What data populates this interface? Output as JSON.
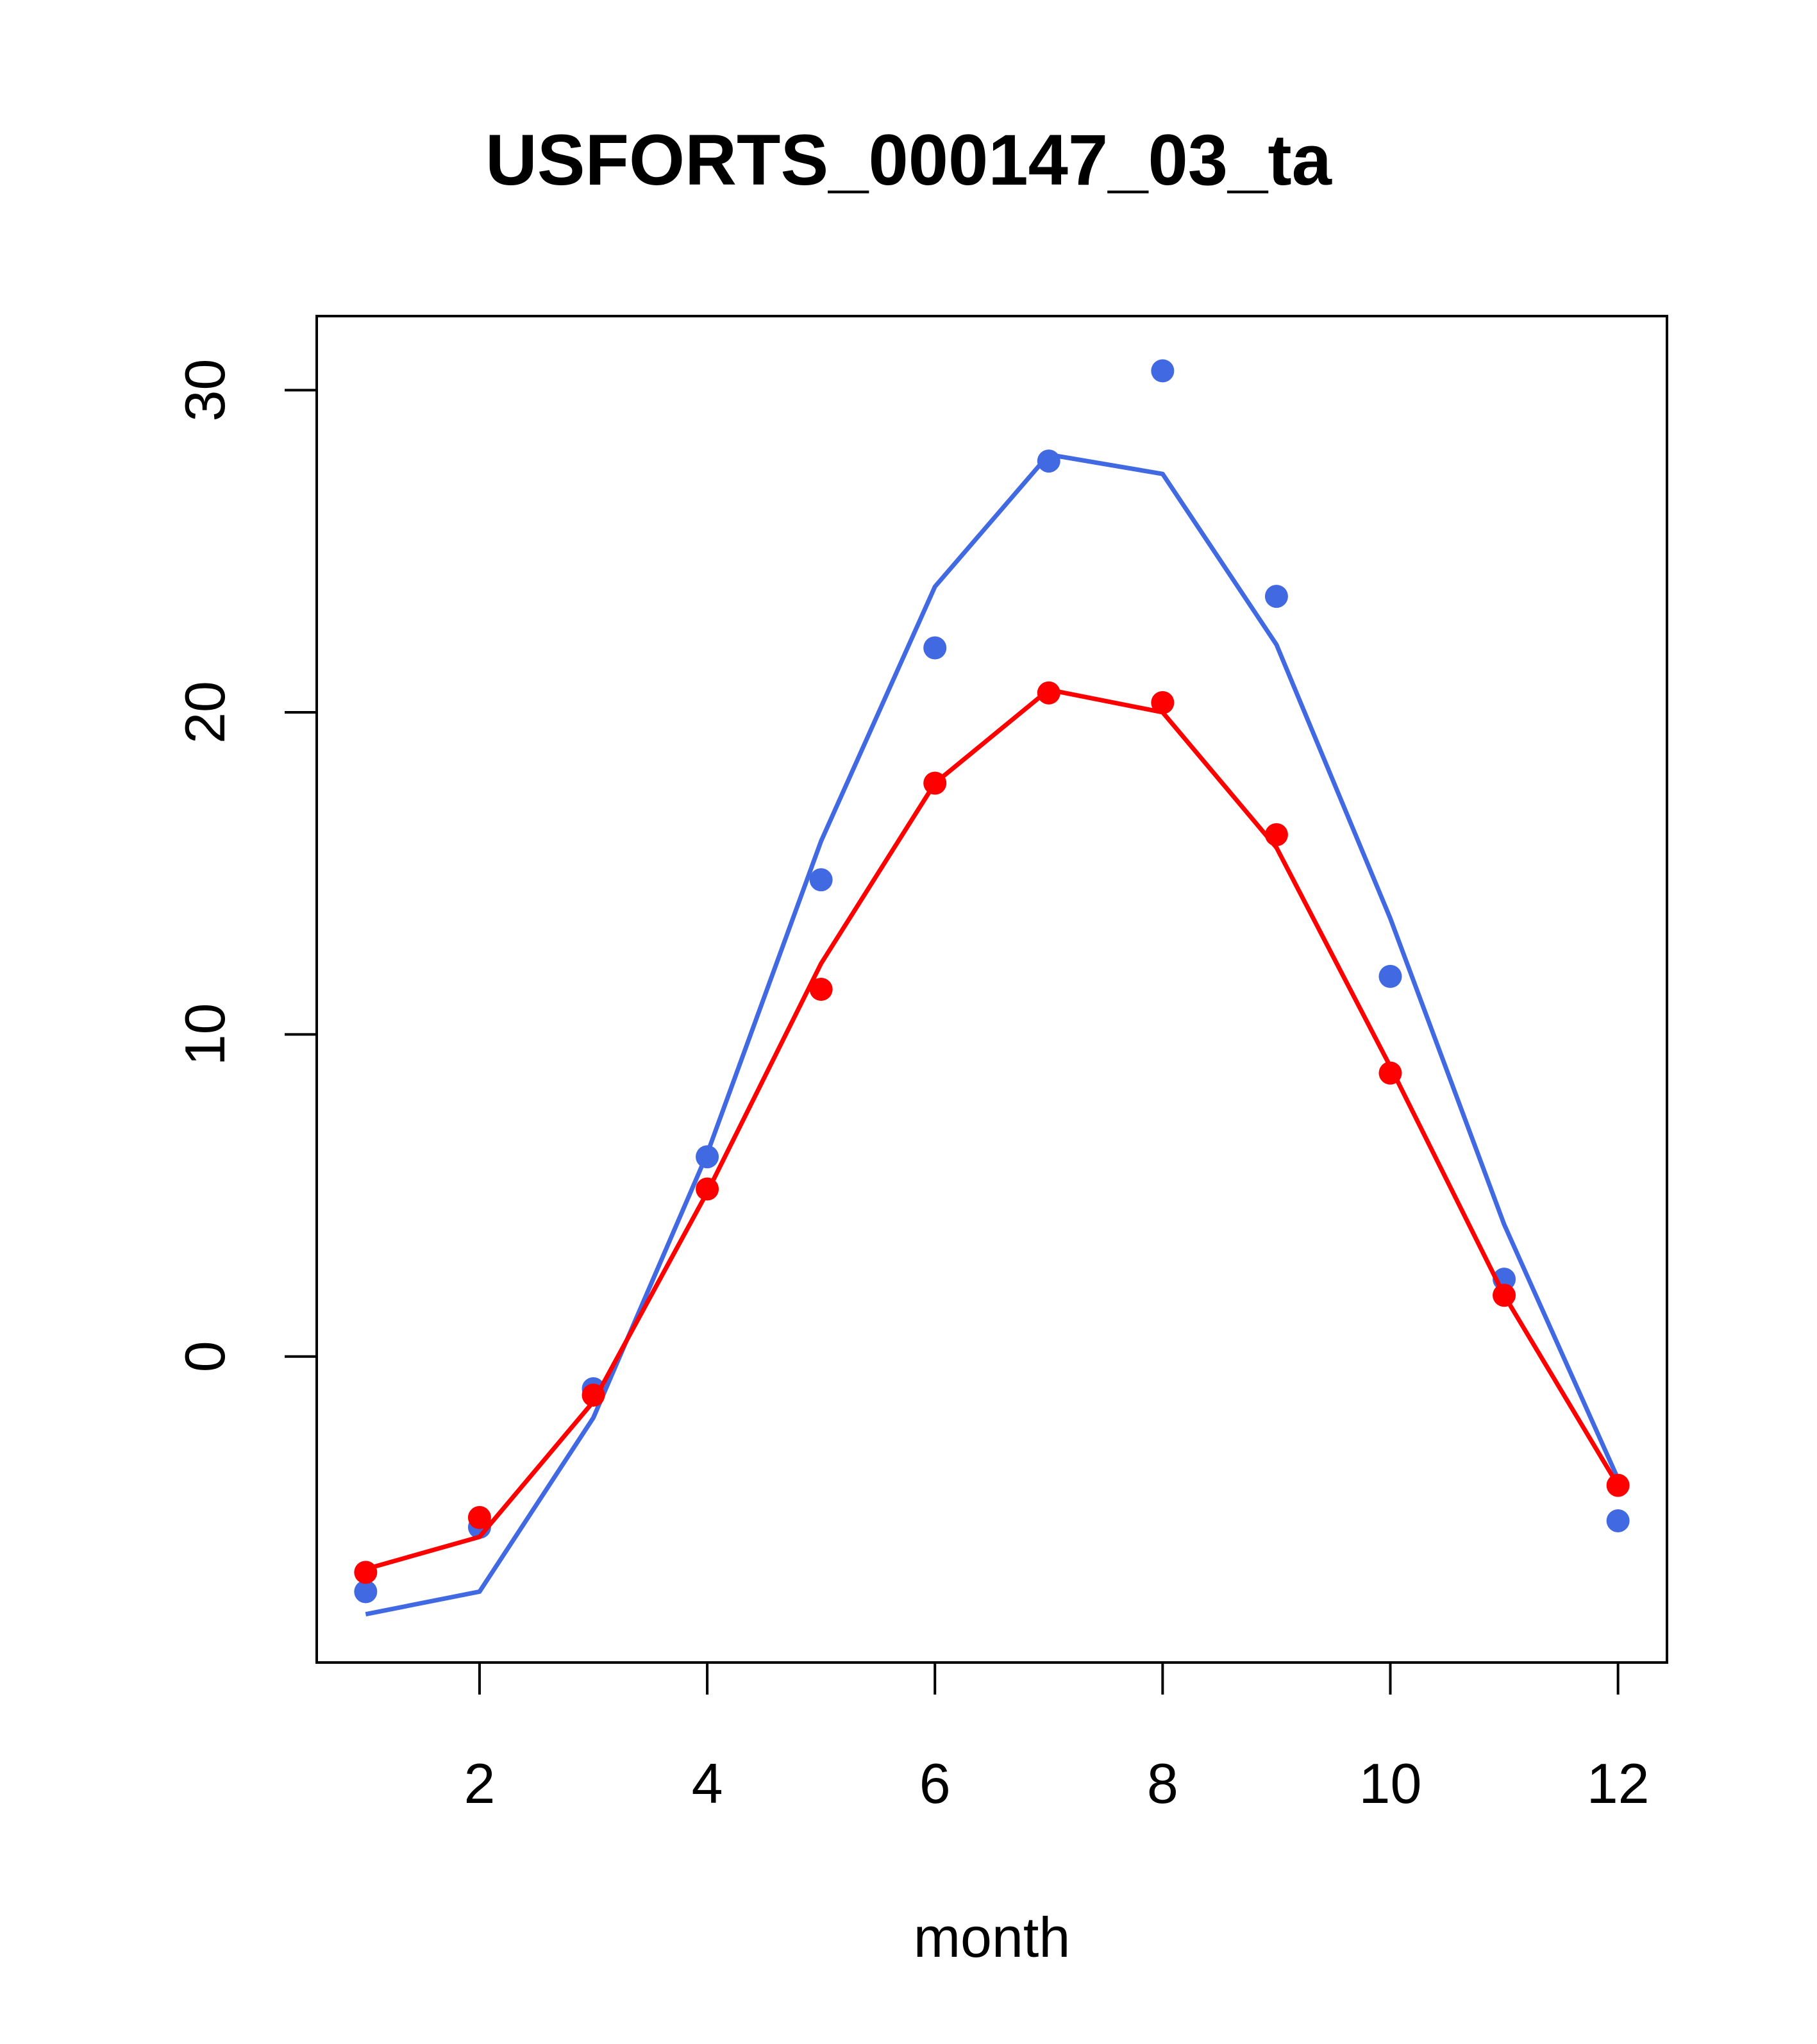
{
  "chart_data": {
    "type": "line",
    "title": "USFORTS_000147_03_ta",
    "xlabel": "month",
    "ylabel": "",
    "xlim": [
      0.57,
      12.43
    ],
    "ylim": [
      -9.5,
      32.3
    ],
    "x_ticks": [
      2,
      4,
      6,
      8,
      10,
      12
    ],
    "y_ticks": [
      0,
      10,
      20,
      30
    ],
    "x_tick_labels": [
      "2",
      "4",
      "6",
      "8",
      "10",
      "12"
    ],
    "y_tick_labels": [
      "0",
      "10",
      "20",
      "30"
    ],
    "grid": false,
    "legend": "none",
    "x": [
      1,
      2,
      3,
      4,
      5,
      6,
      7,
      8,
      9,
      10,
      11,
      12
    ],
    "series": [
      {
        "color": "#4169E1",
        "points": [
          -7.3,
          -5.3,
          -1.0,
          6.2,
          14.8,
          22.0,
          27.8,
          30.6,
          23.6,
          11.8,
          2.4,
          -5.1
        ],
        "line": [
          -8.0,
          -7.3,
          -1.9,
          6.3,
          16.0,
          23.9,
          28.0,
          27.4,
          22.1,
          13.6,
          4.1,
          -3.8
        ]
      },
      {
        "color": "#FF0000",
        "points": [
          -6.7,
          -5.0,
          -1.2,
          5.2,
          11.4,
          17.8,
          20.6,
          20.3,
          16.2,
          8.8,
          1.9,
          -4.0
        ],
        "line": [
          -6.6,
          -5.6,
          -1.4,
          5.1,
          12.2,
          17.8,
          20.7,
          20.0,
          15.8,
          9.0,
          1.9,
          -4.0
        ]
      }
    ]
  }
}
